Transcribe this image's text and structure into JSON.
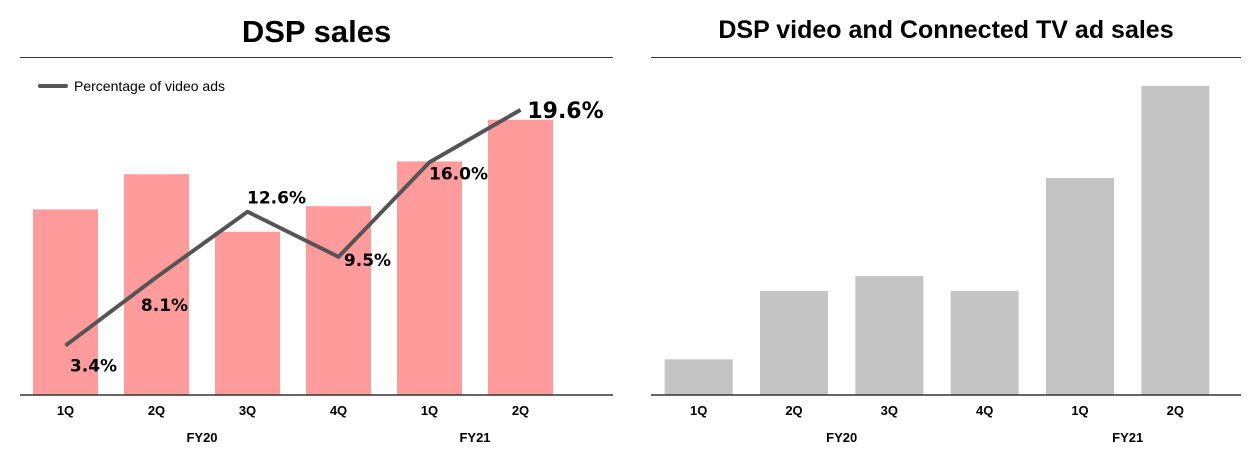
{
  "chart_data": [
    {
      "type": "bar",
      "title": "DSP sales",
      "categories": [
        "1Q",
        "2Q",
        "3Q",
        "4Q",
        "1Q",
        "2Q"
      ],
      "groups": [
        {
          "label": "FY20",
          "categories": [
            "1Q",
            "2Q",
            "3Q",
            "4Q"
          ]
        },
        {
          "label": "FY21",
          "categories": [
            "1Q",
            "2Q"
          ]
        }
      ],
      "series": [
        {
          "type": "bar",
          "color": "#ff9b9b",
          "values": [
            58,
            69,
            51,
            59,
            73,
            86
          ]
        },
        {
          "type": "line",
          "name": "Percentage of video ads",
          "color": "#555555",
          "values": [
            3.4,
            8.1,
            12.6,
            9.5,
            16.0,
            19.6
          ],
          "labels": [
            "3.4%",
            "8.1%",
            "12.6%",
            "9.5%",
            "16.0%",
            "19.6%"
          ],
          "ylim": [
            0,
            22
          ]
        }
      ],
      "ylim": [
        0,
        100
      ],
      "legend": "top-left",
      "grid": false
    },
    {
      "type": "bar",
      "title": "DSP video and Connected TV ad sales",
      "categories": [
        "1Q",
        "2Q",
        "3Q",
        "4Q",
        "1Q",
        "2Q"
      ],
      "groups": [
        {
          "label": "FY20",
          "categories": [
            "1Q",
            "2Q",
            "3Q",
            "4Q"
          ]
        },
        {
          "label": "FY21",
          "categories": [
            "1Q",
            "2Q"
          ]
        }
      ],
      "series": [
        {
          "type": "bar",
          "color": "#c4c4c4",
          "values": [
            12,
            35,
            40,
            35,
            73,
            104
          ]
        }
      ],
      "ylim": [
        0,
        110
      ],
      "grid": false
    }
  ]
}
